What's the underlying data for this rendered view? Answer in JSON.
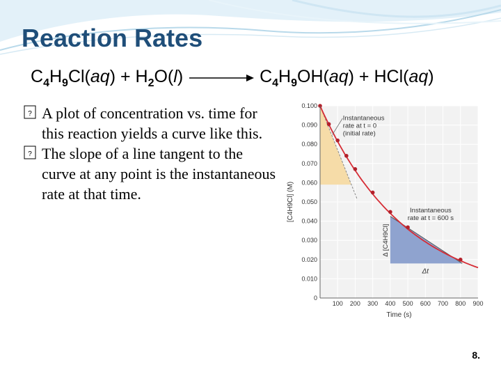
{
  "slide": {
    "title": "Reaction Rates",
    "equation": {
      "reactant_1": {
        "c": "C",
        "c_sub": "4",
        "h": "H",
        "h_sub": "9",
        "rest": "Cl(",
        "state": "aq",
        "close": ")"
      },
      "plus_1": " + ",
      "reactant_2": {
        "h": "H",
        "h_sub": "2",
        "rest": "O(",
        "state": "l",
        "close": ")"
      },
      "product_1": {
        "c": "C",
        "c_sub": "4",
        "h": "H",
        "h_sub": "9",
        "rest": "OH(",
        "state": "aq",
        "close": ")"
      },
      "plus_2": " + ",
      "product_2": {
        "rest": "HCl(",
        "state": "aq",
        "close": ")"
      }
    },
    "bullets": [
      "A plot of concentration vs. time for this reaction yields a curve like this.",
      "The slope of a line tangent to the curve at any point is the instantaneous rate at that time."
    ],
    "page_number": "8."
  },
  "colors": {
    "title": "#1f4e79",
    "curve": "#d62c35",
    "initial_triangle": "#f6dca8",
    "tangent_triangle": "#8fa3cf",
    "header_swoosh": "#cfe6f3"
  },
  "chart_data": {
    "type": "line",
    "xlabel": "Time (s)",
    "ylabel": "[C4H9Cl] (M)",
    "xlim": [
      0,
      900
    ],
    "ylim": [
      0,
      0.1
    ],
    "x_ticks": [
      "100",
      "200",
      "300",
      "400",
      "500",
      "600",
      "700",
      "800",
      "900"
    ],
    "y_ticks": [
      "0",
      "0.010",
      "0.020",
      "0.030",
      "0.040",
      "0.050",
      "0.060",
      "0.070",
      "0.080",
      "0.090",
      "0.100"
    ],
    "points": [
      {
        "x": 0,
        "y": 0.1
      },
      {
        "x": 50,
        "y": 0.0905
      },
      {
        "x": 100,
        "y": 0.082
      },
      {
        "x": 150,
        "y": 0.074
      },
      {
        "x": 200,
        "y": 0.0671
      },
      {
        "x": 300,
        "y": 0.0549
      },
      {
        "x": 400,
        "y": 0.0448
      },
      {
        "x": 500,
        "y": 0.0368
      },
      {
        "x": 800,
        "y": 0.02
      }
    ],
    "annotations": {
      "initial_rate": "Instantaneous rate at t = 0 (initial rate)",
      "initial_rate_lines": [
        "Instantaneous",
        "rate at t = 0",
        "(initial rate)"
      ],
      "rate_600_lines": [
        "Instantaneous",
        "rate at t = 600 s"
      ],
      "delta_conc": "Δ [C4H9Cl]",
      "delta_t": "Δt"
    }
  }
}
